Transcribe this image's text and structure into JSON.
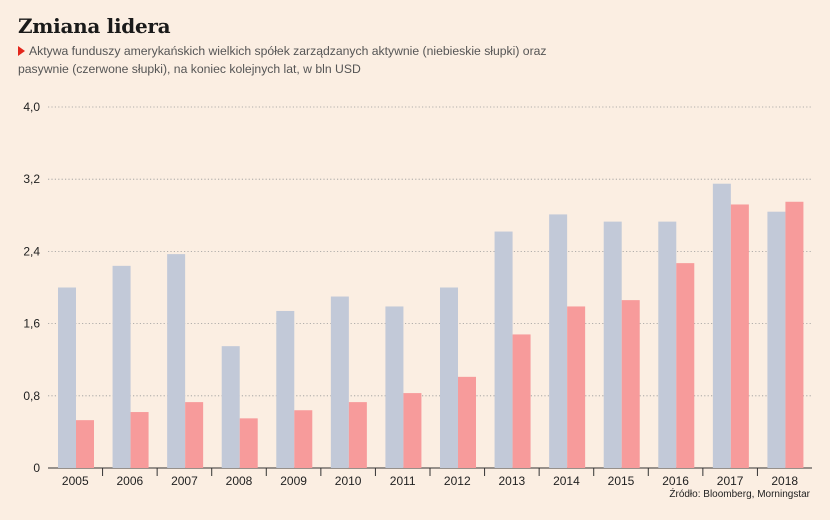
{
  "header": {
    "title": "Zmiana lidera",
    "subtitle": "Aktywa funduszy amerykańskich wielkich spółek zarządzanych aktywnie (niebieskie słupki) oraz pasywnie (czerwone słupki), na koniec kolejnych lat, w bln USD"
  },
  "source": "Źródło: Bloomberg, Morningstar",
  "colors": {
    "active": "#c2c9d8",
    "passive": "#f79b9b",
    "marker": "#e3261c",
    "background": "#fbeee2"
  },
  "chart_data": {
    "type": "bar",
    "categories": [
      "2005",
      "2006",
      "2007",
      "2008",
      "2009",
      "2010",
      "2011",
      "2012",
      "2013",
      "2014",
      "2015",
      "2016",
      "2017",
      "2018"
    ],
    "series": [
      {
        "values": [
          2.0,
          2.24,
          2.37,
          1.35,
          1.74,
          1.9,
          1.79,
          2.0,
          2.62,
          2.81,
          2.73,
          2.73,
          3.15,
          2.84
        ]
      },
      {
        "values": [
          0.53,
          0.62,
          0.73,
          0.55,
          0.64,
          0.73,
          0.83,
          1.01,
          1.48,
          1.79,
          1.86,
          2.27,
          2.92,
          2.95
        ]
      }
    ],
    "yticks": [
      "4,0",
      "3,2",
      "2,4",
      "1,6",
      "0,8",
      "0"
    ],
    "ytick_values": [
      4.0,
      3.2,
      2.4,
      1.6,
      0.8,
      0
    ],
    "ylim": [
      0,
      4.0
    ],
    "grid": true
  }
}
